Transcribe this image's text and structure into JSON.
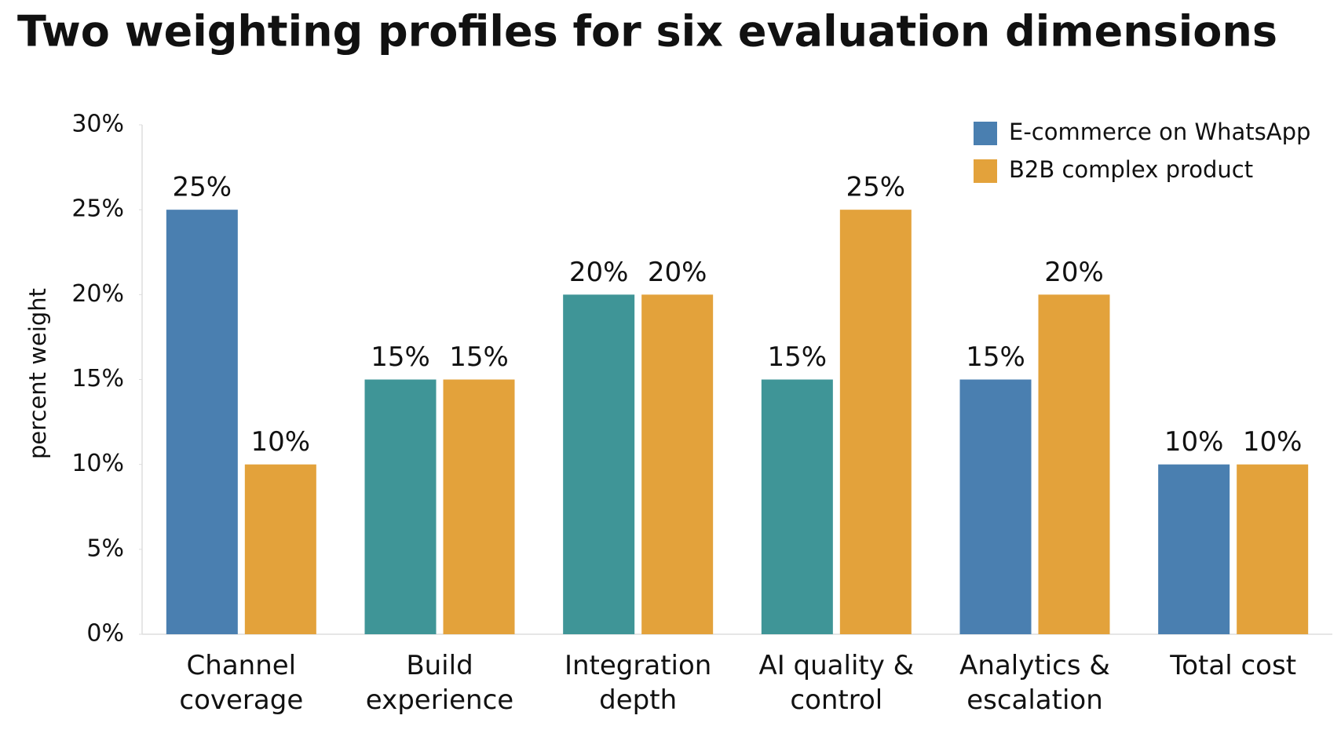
{
  "chart_data": {
    "type": "bar",
    "title": "Two weighting profiles for six evaluation dimensions",
    "y_label": "percent weight",
    "categories": [
      "Channel coverage",
      "Build experience",
      "Integration depth",
      "AI quality & control",
      "Analytics & escalation",
      "Total cost"
    ],
    "series": [
      {
        "name": "E-commerce on WhatsApp",
        "color": "#4a7fb0",
        "bar_colors": [
          "#4a7fb0",
          "#3f9597",
          "#3f9597",
          "#3f9597",
          "#4a7fb0",
          "#4a7fb0"
        ],
        "values": [
          25,
          15,
          20,
          15,
          15,
          10
        ],
        "value_labels": [
          "25%",
          "15%",
          "20%",
          "15%",
          "15%",
          "10%"
        ]
      },
      {
        "name": "B2B complex product",
        "color": "#e3a23b",
        "values": [
          10,
          15,
          20,
          25,
          20,
          10
        ],
        "value_labels": [
          "10%",
          "15%",
          "20%",
          "25%",
          "20%",
          "10%"
        ]
      }
    ],
    "ylim": [
      0,
      30
    ],
    "yticks": [
      {
        "value": 0,
        "label": "0%"
      },
      {
        "value": 5,
        "label": "5%"
      },
      {
        "value": 10,
        "label": "10%"
      },
      {
        "value": 15,
        "label": "15%"
      },
      {
        "value": 20,
        "label": "20%"
      },
      {
        "value": 25,
        "label": "25%"
      },
      {
        "value": 30,
        "label": "30%"
      }
    ],
    "legend": "top-right"
  }
}
